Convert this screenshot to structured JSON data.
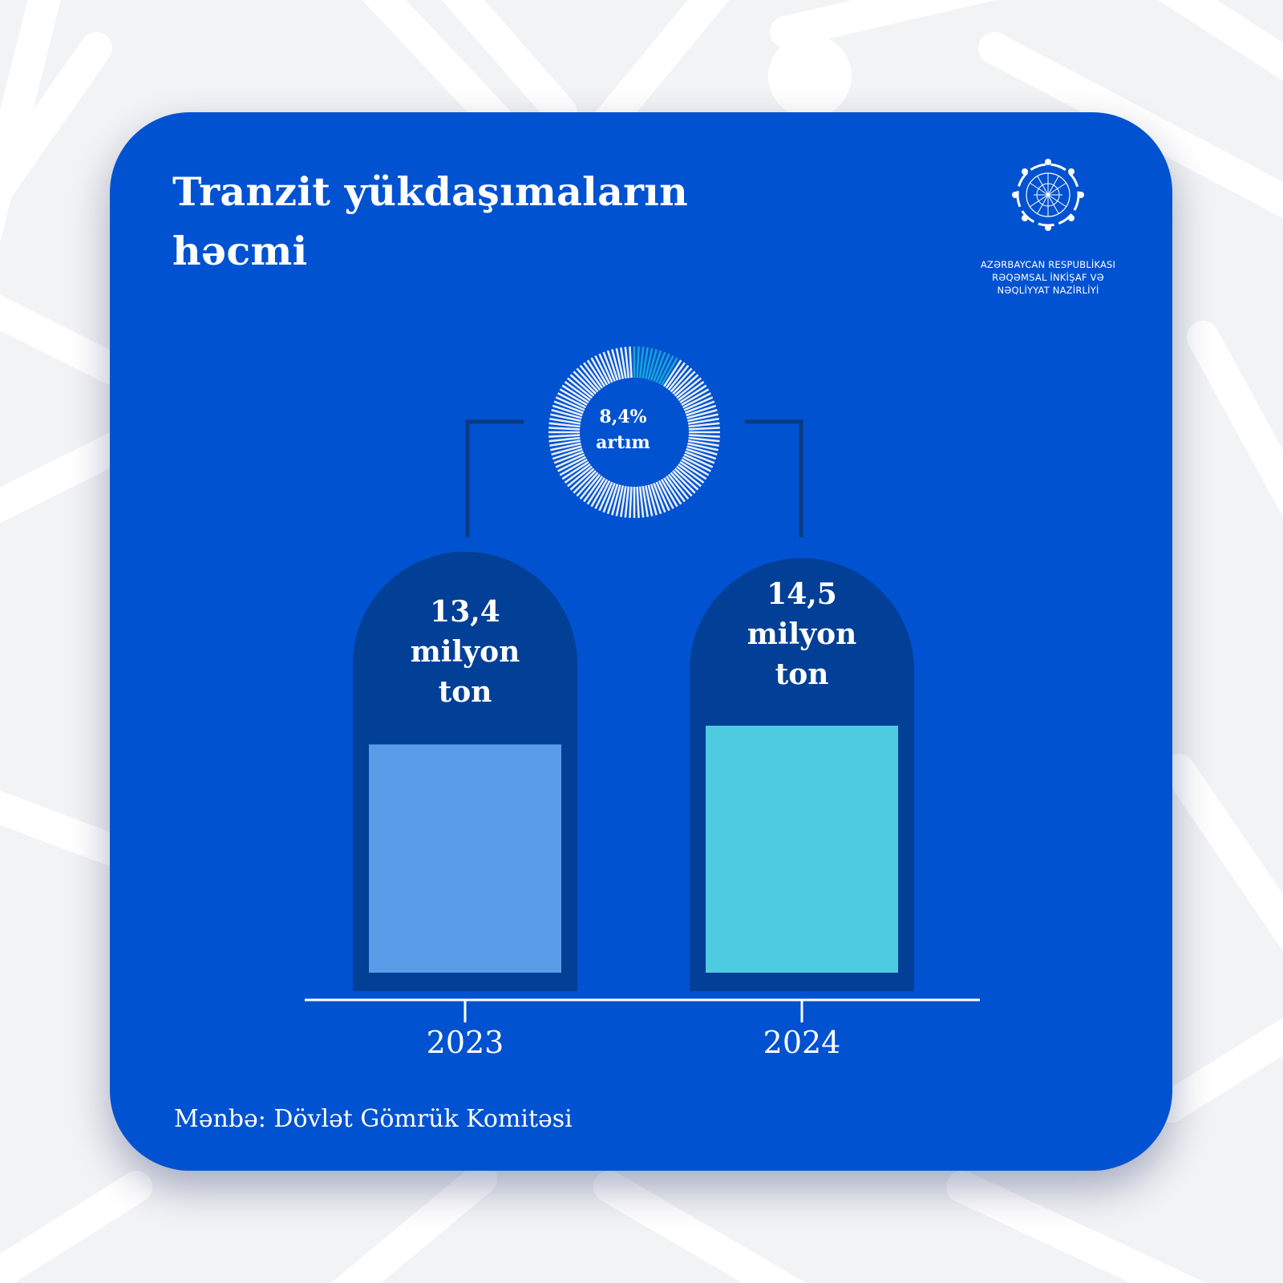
{
  "title": "Tranzit yükdaşımaların həcmi",
  "logo": {
    "line1": "AZƏRBAYCAN RESPUBLİKASI",
    "line2": "RƏQƏMSAL İNKİŞAF VƏ",
    "line3": "NƏQLİYYAT NAZİRLİYİ"
  },
  "growth": {
    "value": "8,4%",
    "label": "artım",
    "fraction": 0.084
  },
  "source": "Mənbə: Dövlət Gömrük Komitəsi",
  "colors": {
    "card": "#0052d1",
    "bar_container": "#023f96",
    "bar_2023": "#5b9ce8",
    "bar_2024": "#4ecbe0",
    "donut_highlight": "#1aa3d6",
    "donut_base": "#e8eef8"
  },
  "chart_data": {
    "type": "bar",
    "categories": [
      "2023",
      "2024"
    ],
    "values": [
      13.4,
      14.5
    ],
    "value_labels": [
      [
        "13,4",
        "milyon",
        "ton"
      ],
      [
        "14,5",
        "milyon",
        "ton"
      ]
    ],
    "title": "Tranzit yükdaşımaların həcmi",
    "xlabel": "",
    "ylabel": "",
    "grid": false
  }
}
